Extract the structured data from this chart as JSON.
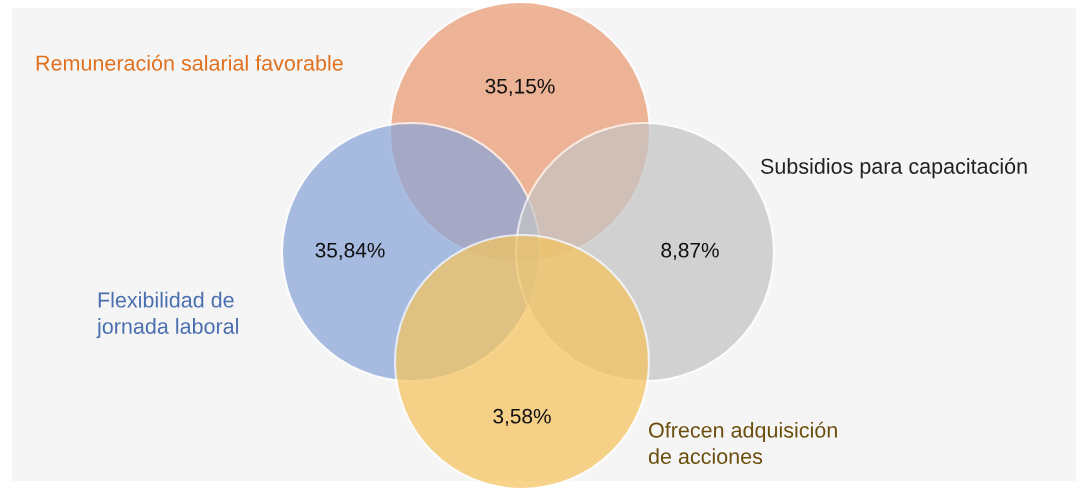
{
  "chart_data": {
    "type": "other",
    "categories": [
      "Remuneración salarial favorable",
      "Flexibilidad de\njornada laboral",
      "Subsidios para capacitación",
      "Ofrecen adquisición\nde acciones"
    ],
    "values": [
      35.15,
      35.84,
      8.87,
      3.58
    ],
    "value_labels": [
      "35,15%",
      "35,84%",
      "8,87%",
      "3,58%"
    ],
    "colors": [
      "#eb9a72",
      "#8aa6d8",
      "#c4c4c4",
      "#f5c45e"
    ]
  }
}
